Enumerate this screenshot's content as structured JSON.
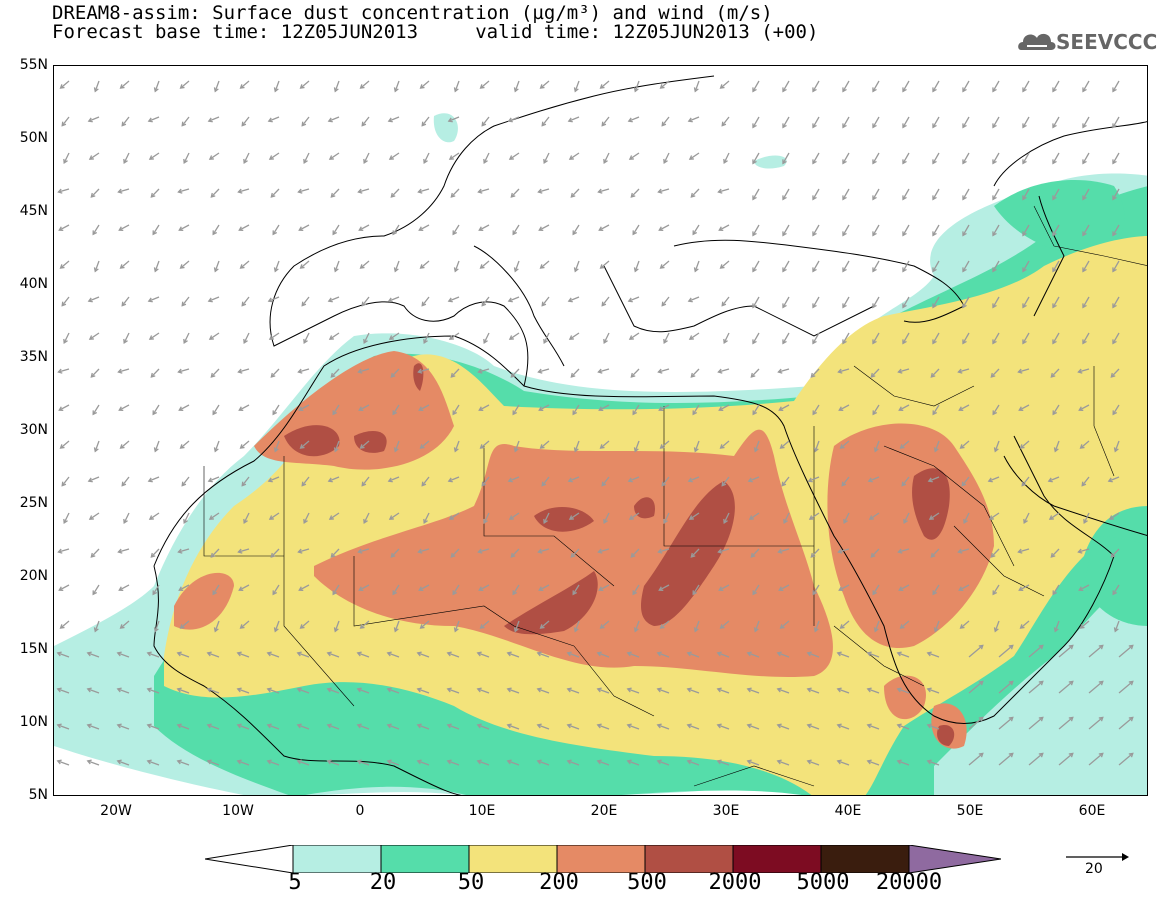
{
  "title": {
    "line1": "DREAM8-assim: Surface dust concentration (µg/m³) and wind (m/s)",
    "line2": "Forecast base time: 12Z05JUN2013     valid time: 12Z05JUN2013 (+00)"
  },
  "logo": {
    "icon": "cloud-icon",
    "text": "SEEVCCC"
  },
  "axes": {
    "lat_labels": [
      "55N",
      "50N",
      "45N",
      "40N",
      "35N",
      "30N",
      "25N",
      "20N",
      "15N",
      "10N",
      "5N"
    ],
    "lon_labels": [
      "20W",
      "10W",
      "0",
      "10E",
      "20E",
      "30E",
      "40E",
      "50E",
      "60E"
    ]
  },
  "colorbar": {
    "labels": [
      "5",
      "20",
      "50",
      "200",
      "500",
      "2000",
      "5000",
      "20000"
    ],
    "colors": [
      "#b6eee3",
      "#55ddaa",
      "#f3e37b",
      "#e58a65",
      "#b04f44",
      "#7d0c22",
      "#3a1d0e",
      "#8f6aa0"
    ]
  },
  "wind_reference": {
    "label": "20"
  },
  "colors": {
    "land_outline": "#000000",
    "wind_arrow": "#9a9a9a"
  }
}
